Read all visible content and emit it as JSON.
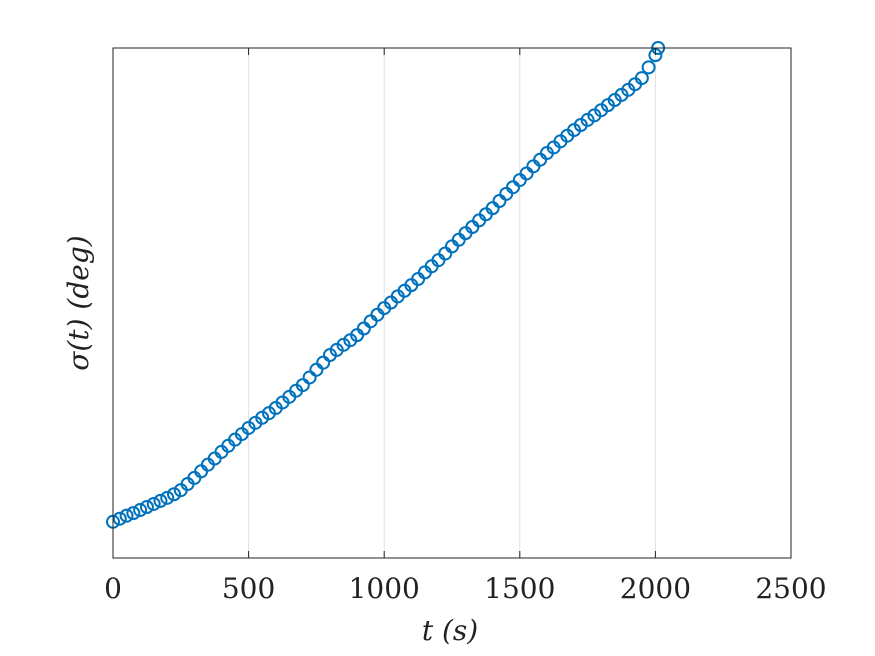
{
  "chart_data": {
    "type": "scatter",
    "xlabel": "t (s)",
    "ylabel": "σ(t) (deg)",
    "x": [
      0,
      25,
      50,
      75,
      100,
      125,
      150,
      175,
      200,
      225,
      250,
      275,
      300,
      325,
      350,
      375,
      400,
      425,
      450,
      475,
      500,
      525,
      550,
      575,
      600,
      625,
      650,
      675,
      700,
      725,
      750,
      775,
      800,
      825,
      850,
      875,
      900,
      925,
      950,
      975,
      1000,
      1025,
      1050,
      1075,
      1100,
      1125,
      1150,
      1175,
      1200,
      1225,
      1250,
      1275,
      1300,
      1325,
      1350,
      1375,
      1400,
      1425,
      1450,
      1475,
      1500,
      1525,
      1550,
      1575,
      1600,
      1625,
      1650,
      1675,
      1700,
      1725,
      1750,
      1775,
      1800,
      1825,
      1850,
      1875,
      1900,
      1925,
      1950,
      1975,
      2000,
      2010
    ],
    "values": [
      0.071,
      0.077,
      0.083,
      0.088,
      0.094,
      0.1,
      0.106,
      0.112,
      0.118,
      0.125,
      0.133,
      0.145,
      0.157,
      0.17,
      0.183,
      0.195,
      0.208,
      0.22,
      0.232,
      0.243,
      0.255,
      0.265,
      0.275,
      0.284,
      0.294,
      0.305,
      0.316,
      0.328,
      0.339,
      0.354,
      0.369,
      0.383,
      0.398,
      0.408,
      0.418,
      0.427,
      0.437,
      0.45,
      0.464,
      0.477,
      0.49,
      0.501,
      0.513,
      0.524,
      0.535,
      0.547,
      0.56,
      0.572,
      0.584,
      0.597,
      0.611,
      0.624,
      0.637,
      0.649,
      0.662,
      0.674,
      0.686,
      0.7,
      0.714,
      0.727,
      0.741,
      0.754,
      0.768,
      0.781,
      0.794,
      0.805,
      0.817,
      0.828,
      0.839,
      0.849,
      0.859,
      0.868,
      0.878,
      0.888,
      0.898,
      0.908,
      0.918,
      0.929,
      0.941,
      0.962,
      0.986,
      1.0
    ],
    "color": "#0072bd",
    "xlim": [
      0,
      2500
    ],
    "xticks": [
      0,
      500,
      1000,
      1500,
      2000,
      2500
    ],
    "ylim": [
      0,
      1
    ],
    "grid": true
  }
}
